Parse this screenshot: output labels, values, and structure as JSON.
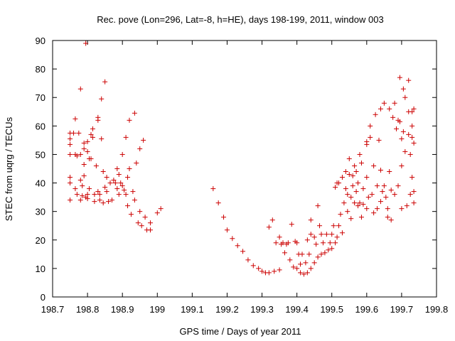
{
  "chart_data": {
    "type": "scatter",
    "title": "Rec. pove (Lon=296, Lat=-8, h=HE), days 198-199, 2011, window 003",
    "xlabel": "GPS time / Days of year 2011",
    "ylabel": "STEC from uqrg / TECUs",
    "xlim": [
      198.7,
      199.8
    ],
    "ylim": [
      0,
      90
    ],
    "xticks": [
      198.7,
      198.8,
      198.9,
      199,
      199.1,
      199.2,
      199.3,
      199.4,
      199.5,
      199.6,
      199.7,
      199.8
    ],
    "xtick_labels": [
      "198.7",
      "198.8",
      "198.9",
      "199",
      "199.1",
      "199.2",
      "199.3",
      "199.4",
      "199.5",
      "199.6",
      "199.7",
      "199.8"
    ],
    "yticks": [
      0,
      10,
      20,
      30,
      40,
      50,
      60,
      70,
      80,
      90
    ],
    "ytick_labels": [
      "0",
      "10",
      "20",
      "30",
      "40",
      "50",
      "60",
      "70",
      "80",
      "90"
    ],
    "grid": false,
    "marker": "+",
    "color": "#cc0000",
    "series": [
      {
        "name": "STEC",
        "points": [
          [
            198.75,
            57.5
          ],
          [
            198.75,
            55.5
          ],
          [
            198.75,
            53.5
          ],
          [
            198.75,
            50
          ],
          [
            198.75,
            42
          ],
          [
            198.75,
            40
          ],
          [
            198.75,
            34
          ],
          [
            198.76,
            57.5
          ],
          [
            198.765,
            62.5
          ],
          [
            198.765,
            50
          ],
          [
            198.765,
            38
          ],
          [
            198.77,
            36
          ],
          [
            198.77,
            49.5
          ],
          [
            198.775,
            57.5
          ],
          [
            198.78,
            73
          ],
          [
            198.78,
            50
          ],
          [
            198.78,
            41
          ],
          [
            198.78,
            34
          ],
          [
            198.785,
            39
          ],
          [
            198.785,
            35.5
          ],
          [
            198.79,
            54
          ],
          [
            198.79,
            52
          ],
          [
            198.79,
            46.5
          ],
          [
            198.79,
            42.5
          ],
          [
            198.795,
            89
          ],
          [
            198.795,
            35
          ],
          [
            198.8,
            54.5
          ],
          [
            198.8,
            51
          ],
          [
            198.8,
            36
          ],
          [
            198.8,
            34.5
          ],
          [
            198.805,
            48.5
          ],
          [
            198.805,
            38
          ],
          [
            198.81,
            57
          ],
          [
            198.81,
            48.5
          ],
          [
            198.815,
            59
          ],
          [
            198.815,
            56
          ],
          [
            198.82,
            36
          ],
          [
            198.82,
            33.5
          ],
          [
            198.825,
            46
          ],
          [
            198.83,
            63
          ],
          [
            198.83,
            62
          ],
          [
            198.83,
            37
          ],
          [
            198.835,
            34
          ],
          [
            198.835,
            36
          ],
          [
            198.84,
            69.5
          ],
          [
            198.84,
            55.5
          ],
          [
            198.845,
            44
          ],
          [
            198.845,
            33
          ],
          [
            198.85,
            75.5
          ],
          [
            198.85,
            38.5
          ],
          [
            198.855,
            42
          ],
          [
            198.855,
            37
          ],
          [
            198.86,
            33.5
          ],
          [
            198.865,
            40
          ],
          [
            198.87,
            34
          ],
          [
            198.875,
            41
          ],
          [
            198.88,
            40
          ],
          [
            198.885,
            45
          ],
          [
            198.885,
            38
          ],
          [
            198.89,
            36
          ],
          [
            198.89,
            43
          ],
          [
            198.895,
            40
          ],
          [
            198.9,
            50
          ],
          [
            198.9,
            39
          ],
          [
            198.905,
            37.5
          ],
          [
            198.91,
            56
          ],
          [
            198.91,
            36
          ],
          [
            198.915,
            42
          ],
          [
            198.915,
            32
          ],
          [
            198.92,
            62
          ],
          [
            198.92,
            45
          ],
          [
            198.925,
            29
          ],
          [
            198.93,
            37
          ],
          [
            198.935,
            64.5
          ],
          [
            198.935,
            34
          ],
          [
            198.94,
            47
          ],
          [
            198.945,
            26
          ],
          [
            198.95,
            52
          ],
          [
            198.95,
            30
          ],
          [
            198.955,
            25
          ],
          [
            198.96,
            55
          ],
          [
            198.965,
            28
          ],
          [
            198.97,
            23.5
          ],
          [
            198.98,
            26
          ],
          [
            198.98,
            23.5
          ],
          [
            199.0,
            29.5
          ],
          [
            199.01,
            31
          ],
          [
            199.16,
            38
          ],
          [
            199.175,
            33
          ],
          [
            199.19,
            28
          ],
          [
            199.2,
            23.5
          ],
          [
            199.215,
            20.5
          ],
          [
            199.23,
            18
          ],
          [
            199.245,
            16
          ],
          [
            199.26,
            13
          ],
          [
            199.275,
            11
          ],
          [
            199.29,
            10
          ],
          [
            199.3,
            9
          ],
          [
            199.31,
            8.5
          ],
          [
            199.32,
            8.5
          ],
          [
            199.335,
            9
          ],
          [
            199.35,
            9.5
          ],
          [
            199.32,
            24.5
          ],
          [
            199.33,
            27
          ],
          [
            199.34,
            19
          ],
          [
            199.35,
            21
          ],
          [
            199.36,
            19
          ],
          [
            199.37,
            18.5
          ],
          [
            199.38,
            13
          ],
          [
            199.39,
            10.5
          ],
          [
            199.355,
            18.5
          ],
          [
            199.365,
            15.5
          ],
          [
            199.375,
            19
          ],
          [
            199.385,
            25.5
          ],
          [
            199.395,
            19.5
          ],
          [
            199.4,
            19
          ],
          [
            199.405,
            15
          ],
          [
            199.41,
            11.5
          ],
          [
            199.4,
            10
          ],
          [
            199.41,
            8.5
          ],
          [
            199.42,
            8
          ],
          [
            199.43,
            8.5
          ],
          [
            199.44,
            10
          ],
          [
            199.45,
            12
          ],
          [
            199.46,
            14
          ],
          [
            199.47,
            15
          ],
          [
            199.415,
            15
          ],
          [
            199.425,
            12
          ],
          [
            199.43,
            20
          ],
          [
            199.435,
            15
          ],
          [
            199.44,
            27
          ],
          [
            199.44,
            22
          ],
          [
            199.45,
            21
          ],
          [
            199.455,
            18.5
          ],
          [
            199.46,
            32
          ],
          [
            199.465,
            25
          ],
          [
            199.47,
            22
          ],
          [
            199.475,
            19
          ],
          [
            199.48,
            15.5
          ],
          [
            199.485,
            22
          ],
          [
            199.49,
            16.5
          ],
          [
            199.495,
            19
          ],
          [
            199.5,
            17
          ],
          [
            199.5,
            22
          ],
          [
            199.505,
            25
          ],
          [
            199.51,
            38.5
          ],
          [
            199.51,
            19
          ],
          [
            199.515,
            40
          ],
          [
            199.515,
            21
          ],
          [
            199.52,
            25
          ],
          [
            199.52,
            40
          ],
          [
            199.525,
            29
          ],
          [
            199.53,
            42
          ],
          [
            199.53,
            22.5
          ],
          [
            199.535,
            33
          ],
          [
            199.54,
            44
          ],
          [
            199.54,
            38
          ],
          [
            199.545,
            36
          ],
          [
            199.545,
            30
          ],
          [
            199.55,
            48.5
          ],
          [
            199.55,
            43
          ],
          [
            199.555,
            35
          ],
          [
            199.555,
            27.5
          ],
          [
            199.56,
            42.5
          ],
          [
            199.56,
            39
          ],
          [
            199.565,
            46
          ],
          [
            199.565,
            33
          ],
          [
            199.57,
            44
          ],
          [
            199.57,
            37
          ],
          [
            199.575,
            40
          ],
          [
            199.575,
            32
          ],
          [
            199.58,
            50
          ],
          [
            199.58,
            33
          ],
          [
            199.585,
            47
          ],
          [
            199.585,
            28
          ],
          [
            199.59,
            38
          ],
          [
            199.59,
            32.5
          ],
          [
            199.6,
            54.5
          ],
          [
            199.6,
            53.5
          ],
          [
            199.6,
            42
          ],
          [
            199.6,
            31
          ],
          [
            199.605,
            35
          ],
          [
            199.61,
            60
          ],
          [
            199.61,
            56
          ],
          [
            199.615,
            36
          ],
          [
            199.62,
            46
          ],
          [
            199.62,
            29.5
          ],
          [
            199.625,
            64
          ],
          [
            199.63,
            39
          ],
          [
            199.63,
            31
          ],
          [
            199.635,
            55
          ],
          [
            199.64,
            66
          ],
          [
            199.64,
            44.5
          ],
          [
            199.64,
            33.5
          ],
          [
            199.645,
            37
          ],
          [
            199.65,
            68
          ],
          [
            199.65,
            39
          ],
          [
            199.655,
            35
          ],
          [
            199.66,
            31
          ],
          [
            199.66,
            28
          ],
          [
            199.665,
            66
          ],
          [
            199.665,
            44
          ],
          [
            199.67,
            37.5
          ],
          [
            199.67,
            27
          ],
          [
            199.675,
            63
          ],
          [
            199.68,
            68
          ],
          [
            199.68,
            36
          ],
          [
            199.685,
            59
          ],
          [
            199.69,
            62
          ],
          [
            199.69,
            39
          ],
          [
            199.695,
            77
          ],
          [
            199.695,
            61.5
          ],
          [
            199.7,
            55.5
          ],
          [
            199.7,
            46
          ],
          [
            199.7,
            31
          ],
          [
            199.705,
            73
          ],
          [
            199.705,
            58
          ],
          [
            199.71,
            70
          ],
          [
            199.71,
            51
          ],
          [
            199.715,
            32
          ],
          [
            199.72,
            76
          ],
          [
            199.72,
            65
          ],
          [
            199.72,
            57
          ],
          [
            199.725,
            50
          ],
          [
            199.725,
            36
          ],
          [
            199.73,
            65
          ],
          [
            199.73,
            60
          ],
          [
            199.73,
            56
          ],
          [
            199.73,
            42
          ],
          [
            199.735,
            66
          ],
          [
            199.735,
            54
          ],
          [
            199.735,
            37
          ],
          [
            199.735,
            33
          ]
        ]
      }
    ]
  }
}
